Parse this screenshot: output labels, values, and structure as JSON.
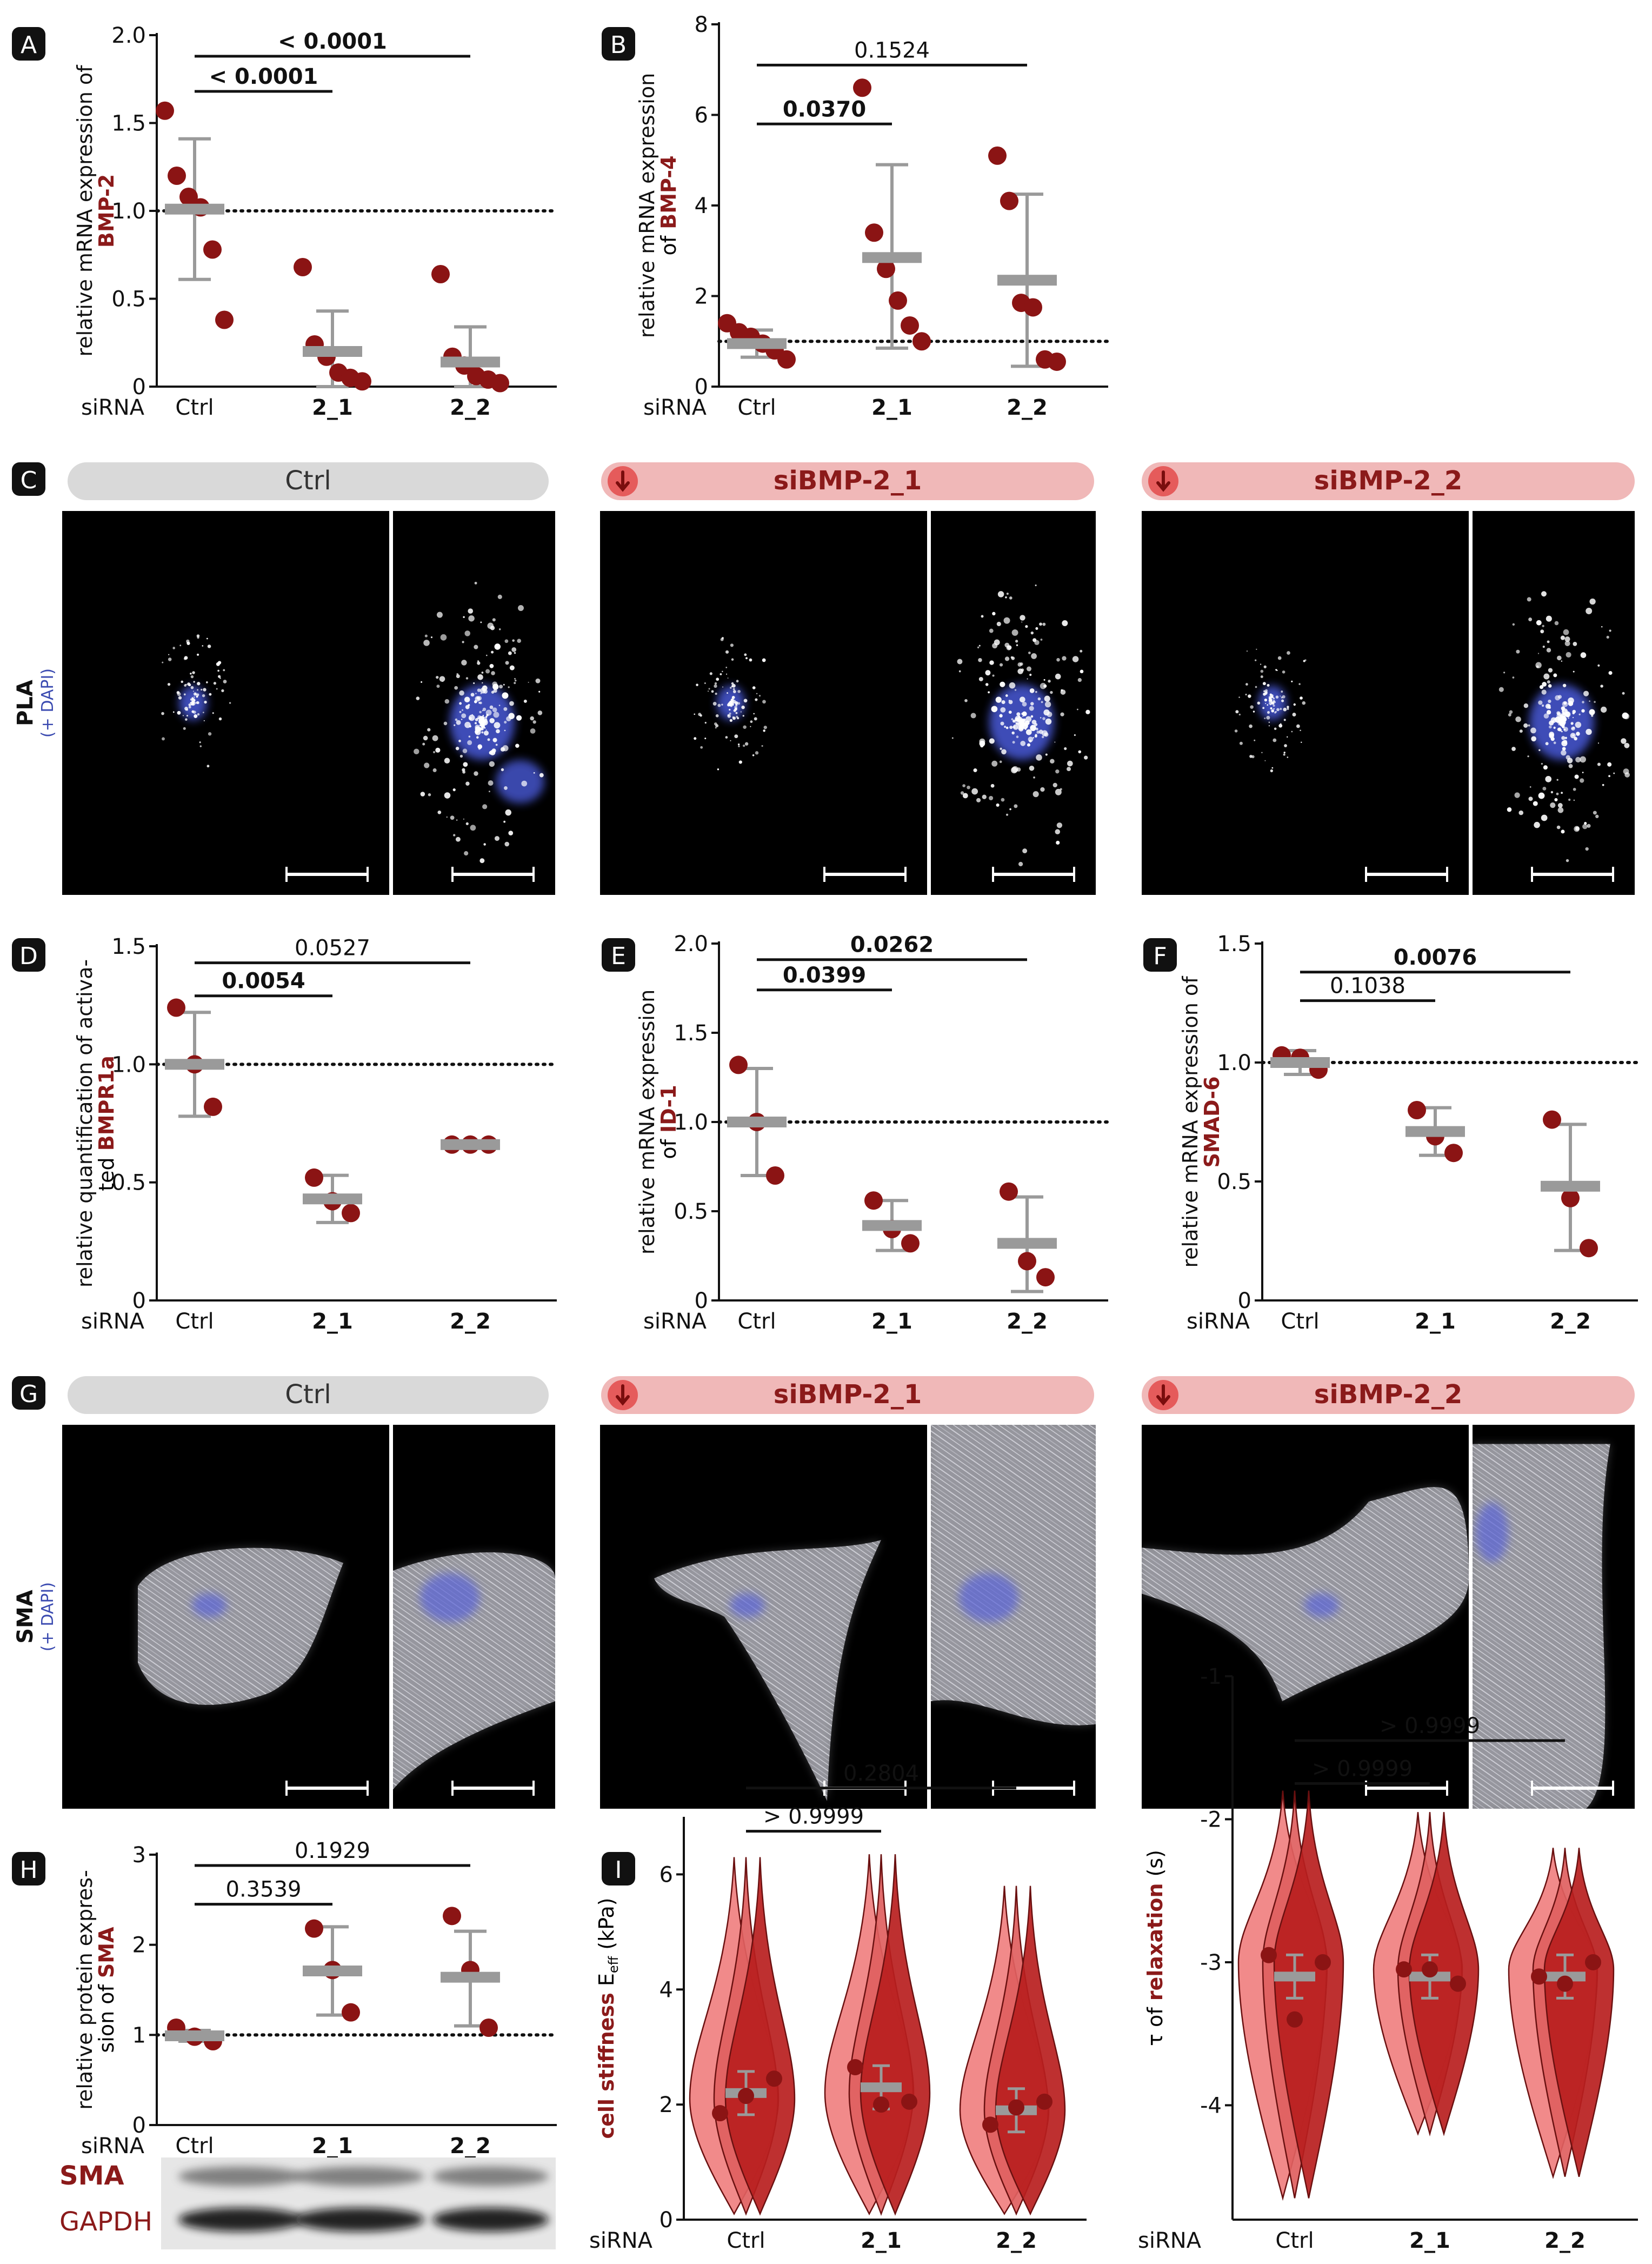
{
  "colors": {
    "dark_red": "#8b1a1a",
    "dot": "#8b1414",
    "mean_bar": "#9a9a9a",
    "ctrl_pill": "#d9d9d9",
    "si_pill": "#f0b8b8",
    "si_icon": "#e55b5b",
    "violin_light": "#f08080",
    "violin_mid": "#e06060",
    "violin_dark": "#b81e1e"
  },
  "common": {
    "siRNA": "siRNA",
    "groups": [
      "Ctrl",
      "2_1",
      "2_2"
    ]
  },
  "panel_letters": {
    "A": "A",
    "B": "B",
    "C": "C",
    "D": "D",
    "E": "E",
    "F": "F",
    "G": "G",
    "H": "H",
    "I": "I"
  },
  "panels": {
    "A": {
      "ylabel_line1": "relative mRNA expression of",
      "ylabel_line2": "BMP-2",
      "yticks": [
        "0",
        "0.5",
        "1.0",
        "1.5",
        "2.0"
      ],
      "sig_labels": [
        "< 0.0001",
        "< 0.0001"
      ]
    },
    "B": {
      "ylabel_line1": "relative mRNA expression",
      "ylabel_line2_prefix": "of ",
      "ylabel_line2_red": "BMP-4",
      "yticks": [
        "0",
        "2",
        "4",
        "6",
        "8"
      ],
      "sig_labels": [
        "0.0370",
        "0.1524"
      ]
    },
    "C": {
      "row_label": "PLA",
      "row_sub": "(+ DAPI)",
      "titles": [
        "Ctrl",
        "siBMP-2_1",
        "siBMP-2_2"
      ]
    },
    "D": {
      "ylabel_line1": "relative quantification of activa-",
      "ylabel_line2_prefix": "ted ",
      "ylabel_line2_red": "BMPR1a",
      "yticks": [
        "0",
        "0.5",
        "1.0",
        "1.5"
      ],
      "sig_labels": [
        "0.0054",
        "0.0527"
      ]
    },
    "E": {
      "ylabel_line1": "relative mRNA expression",
      "ylabel_line2_prefix": "of ",
      "ylabel_line2_red": "ID-1",
      "yticks": [
        "0",
        "0.5",
        "1.0",
        "1.5",
        "2.0"
      ],
      "sig_labels": [
        "0.0399",
        "0.0262"
      ]
    },
    "F": {
      "ylabel_line1": "relative mRNA expression of",
      "ylabel_line2_red": "SMAD-6",
      "yticks": [
        "0",
        "0.5",
        "1.0",
        "1.5"
      ],
      "sig_labels": [
        "0.1038",
        "0.0076"
      ]
    },
    "G": {
      "row_label": "SMA",
      "row_sub": "(+ DAPI)",
      "titles": [
        "Ctrl",
        "siBMP-2_1",
        "siBMP-2_2"
      ]
    },
    "H": {
      "ylabel_line1": "relative protein expres-",
      "ylabel_line2_prefix": "sion of ",
      "ylabel_line2_red": "SMA",
      "yticks": [
        "0",
        "1",
        "2",
        "3"
      ],
      "sig_labels": [
        "0.3539",
        "0.1929"
      ],
      "blot_labels": [
        "SMA",
        "GAPDH"
      ]
    },
    "I": {
      "ylabel_red": "cell stiffness",
      "ylabel_rest": " E",
      "ylabel_sub": "eff",
      "ylabel_unit": " (kPa)",
      "yticks": [
        "0",
        "2",
        "4",
        "6"
      ],
      "sig_labels": [
        "> 0.9999",
        "0.2804"
      ]
    },
    "J": {
      "ylabel_prefix": "τ of ",
      "ylabel_red": "relaxation",
      "ylabel_unit": " (s)",
      "yticks": [
        "-4",
        "-3",
        "-2",
        "-1"
      ],
      "sig_labels": [
        "> 0.9999",
        "> 0.9999"
      ]
    }
  },
  "chart_data": [
    {
      "panel": "A",
      "type": "scatter",
      "categories": [
        "Ctrl",
        "2_1",
        "2_2"
      ],
      "ylim": [
        0,
        2.0
      ],
      "reference_line": 1.0,
      "series": [
        {
          "category": "Ctrl",
          "points": [
            1.57,
            1.2,
            1.08,
            1.02,
            0.78,
            0.38
          ],
          "mean": 1.01,
          "sd_low": 0.61,
          "sd_high": 1.41
        },
        {
          "category": "2_1",
          "points": [
            0.68,
            0.24,
            0.17,
            0.08,
            0.05,
            0.03
          ],
          "mean": 0.2,
          "sd_low": 0.0,
          "sd_high": 0.43
        },
        {
          "category": "2_2",
          "points": [
            0.64,
            0.17,
            0.12,
            0.06,
            0.04,
            0.02
          ],
          "mean": 0.14,
          "sd_low": 0.0,
          "sd_high": 0.34
        }
      ],
      "comparisons": [
        {
          "from": "Ctrl",
          "to": "2_1",
          "label": "< 0.0001",
          "y": 1.68,
          "bold": true
        },
        {
          "from": "Ctrl",
          "to": "2_2",
          "label": "< 0.0001",
          "y": 1.88,
          "bold": true
        }
      ]
    },
    {
      "panel": "B",
      "type": "scatter",
      "categories": [
        "Ctrl",
        "2_1",
        "2_2"
      ],
      "ylim": [
        0,
        8
      ],
      "reference_line": 1.0,
      "series": [
        {
          "category": "Ctrl",
          "points": [
            1.4,
            1.2,
            1.1,
            0.95,
            0.8,
            0.6
          ],
          "mean": 0.95,
          "sd_low": 0.65,
          "sd_high": 1.25
        },
        {
          "category": "2_1",
          "points": [
            6.6,
            3.4,
            2.6,
            1.9,
            1.35,
            1.0
          ],
          "mean": 2.85,
          "sd_low": 0.85,
          "sd_high": 4.9
        },
        {
          "category": "2_2",
          "points": [
            5.1,
            4.1,
            1.85,
            1.75,
            0.6,
            0.55
          ],
          "mean": 2.35,
          "sd_low": 0.45,
          "sd_high": 4.25
        }
      ],
      "comparisons": [
        {
          "from": "Ctrl",
          "to": "2_1",
          "label": "0.0370",
          "y": 5.8,
          "bold": true
        },
        {
          "from": "Ctrl",
          "to": "2_2",
          "label": "0.1524",
          "y": 7.1,
          "bold": false
        }
      ]
    },
    {
      "panel": "D",
      "type": "scatter",
      "categories": [
        "Ctrl",
        "2_1",
        "2_2"
      ],
      "ylim": [
        0,
        1.5
      ],
      "reference_line": 1.0,
      "series": [
        {
          "category": "Ctrl",
          "points": [
            1.24,
            1.0,
            0.82
          ],
          "mean": 1.0,
          "sd_low": 0.78,
          "sd_high": 1.22
        },
        {
          "category": "2_1",
          "points": [
            0.52,
            0.42,
            0.37
          ],
          "mean": 0.43,
          "sd_low": 0.33,
          "sd_high": 0.53
        },
        {
          "category": "2_2",
          "points": [
            0.66,
            0.66,
            0.66
          ],
          "mean": 0.66,
          "sd_low": 0.65,
          "sd_high": 0.67
        }
      ],
      "comparisons": [
        {
          "from": "Ctrl",
          "to": "2_1",
          "label": "0.0054",
          "y": 1.29,
          "bold": true
        },
        {
          "from": "Ctrl",
          "to": "2_2",
          "label": "0.0527",
          "y": 1.43,
          "bold": false
        }
      ]
    },
    {
      "panel": "E",
      "type": "scatter",
      "categories": [
        "Ctrl",
        "2_1",
        "2_2"
      ],
      "ylim": [
        0,
        2.0
      ],
      "reference_line": 1.0,
      "series": [
        {
          "category": "Ctrl",
          "points": [
            1.32,
            1.0,
            0.7
          ],
          "mean": 1.0,
          "sd_low": 0.7,
          "sd_high": 1.3
        },
        {
          "category": "2_1",
          "points": [
            0.56,
            0.4,
            0.32
          ],
          "mean": 0.42,
          "sd_low": 0.28,
          "sd_high": 0.56
        },
        {
          "category": "2_2",
          "points": [
            0.61,
            0.22,
            0.13
          ],
          "mean": 0.32,
          "sd_low": 0.05,
          "sd_high": 0.58
        }
      ],
      "comparisons": [
        {
          "from": "Ctrl",
          "to": "2_1",
          "label": "0.0399",
          "y": 1.74,
          "bold": true
        },
        {
          "from": "Ctrl",
          "to": "2_2",
          "label": "0.0262",
          "y": 1.91,
          "bold": true
        }
      ]
    },
    {
      "panel": "F",
      "type": "scatter",
      "categories": [
        "Ctrl",
        "2_1",
        "2_2"
      ],
      "ylim": [
        0,
        1.5
      ],
      "reference_line": 1.0,
      "series": [
        {
          "category": "Ctrl",
          "points": [
            1.03,
            1.02,
            0.97
          ],
          "mean": 1.0,
          "sd_low": 0.95,
          "sd_high": 1.05
        },
        {
          "category": "2_1",
          "points": [
            0.8,
            0.69,
            0.62
          ],
          "mean": 0.71,
          "sd_low": 0.61,
          "sd_high": 0.81
        },
        {
          "category": "2_2",
          "points": [
            0.76,
            0.43,
            0.22
          ],
          "mean": 0.48,
          "sd_low": 0.21,
          "sd_high": 0.74
        }
      ],
      "comparisons": [
        {
          "from": "Ctrl",
          "to": "2_1",
          "label": "0.1038",
          "y": 1.26,
          "bold": false
        },
        {
          "from": "Ctrl",
          "to": "2_2",
          "label": "0.0076",
          "y": 1.38,
          "bold": true
        }
      ]
    },
    {
      "panel": "H",
      "type": "scatter",
      "categories": [
        "Ctrl",
        "2_1",
        "2_2"
      ],
      "ylim": [
        0,
        3
      ],
      "reference_line": 1.0,
      "series": [
        {
          "category": "Ctrl",
          "points": [
            1.08,
            0.98,
            0.93
          ],
          "mean": 0.99,
          "sd_low": 0.93,
          "sd_high": 1.05
        },
        {
          "category": "2_1",
          "points": [
            2.18,
            1.72,
            1.25
          ],
          "mean": 1.71,
          "sd_low": 1.22,
          "sd_high": 2.2
        },
        {
          "category": "2_2",
          "points": [
            2.32,
            1.72,
            1.08
          ],
          "mean": 1.64,
          "sd_low": 1.1,
          "sd_high": 2.15
        }
      ],
      "comparisons": [
        {
          "from": "Ctrl",
          "to": "2_1",
          "label": "0.3539",
          "y": 2.45,
          "bold": false
        },
        {
          "from": "Ctrl",
          "to": "2_2",
          "label": "0.1929",
          "y": 2.88,
          "bold": false
        }
      ]
    },
    {
      "panel": "I",
      "type": "violin",
      "categories": [
        "Ctrl",
        "2_1",
        "2_2"
      ],
      "ylim": [
        0,
        7
      ],
      "series": [
        {
          "category": "Ctrl",
          "min": 0.1,
          "max": 6.3,
          "mode": 2.1,
          "mean": 2.2,
          "points": [
            1.85,
            2.15,
            2.45
          ]
        },
        {
          "category": "2_1",
          "min": 0.1,
          "max": 6.35,
          "mode": 2.2,
          "mean": 2.3,
          "points": [
            2.65,
            2.0,
            2.05
          ]
        },
        {
          "category": "2_2",
          "min": 0.1,
          "max": 5.8,
          "mode": 1.9,
          "mean": 1.9,
          "points": [
            1.65,
            1.95,
            2.05
          ]
        }
      ],
      "comparisons": [
        {
          "from": "Ctrl",
          "to": "2_1",
          "label": "> 0.9999",
          "y": 6.75,
          "bold": false
        },
        {
          "from": "Ctrl",
          "to": "2_2",
          "label": "0.2804",
          "y": 7.5,
          "bold": false
        }
      ]
    },
    {
      "panel": "J",
      "type": "violin",
      "categories": [
        "Ctrl",
        "2_1",
        "2_2"
      ],
      "ylim": [
        -4.8,
        -1
      ],
      "series": [
        {
          "category": "Ctrl",
          "min": -4.65,
          "max": -1.8,
          "mode": -3.0,
          "mean": -3.1,
          "points": [
            -2.95,
            -3.4,
            -3.0
          ]
        },
        {
          "category": "2_1",
          "min": -4.2,
          "max": -1.95,
          "mode": -3.05,
          "mean": -3.1,
          "points": [
            -3.05,
            -3.05,
            -3.15
          ]
        },
        {
          "category": "2_2",
          "min": -4.5,
          "max": -2.2,
          "mode": -3.05,
          "mean": -3.1,
          "points": [
            -3.1,
            -3.15,
            -3.0
          ]
        }
      ],
      "comparisons": [
        {
          "from": "Ctrl",
          "to": "2_1",
          "label": "> 0.9999",
          "y": -1.75,
          "bold": false
        },
        {
          "from": "Ctrl",
          "to": "2_2",
          "label": "> 0.9999",
          "y": -1.45,
          "bold": false
        }
      ]
    }
  ]
}
